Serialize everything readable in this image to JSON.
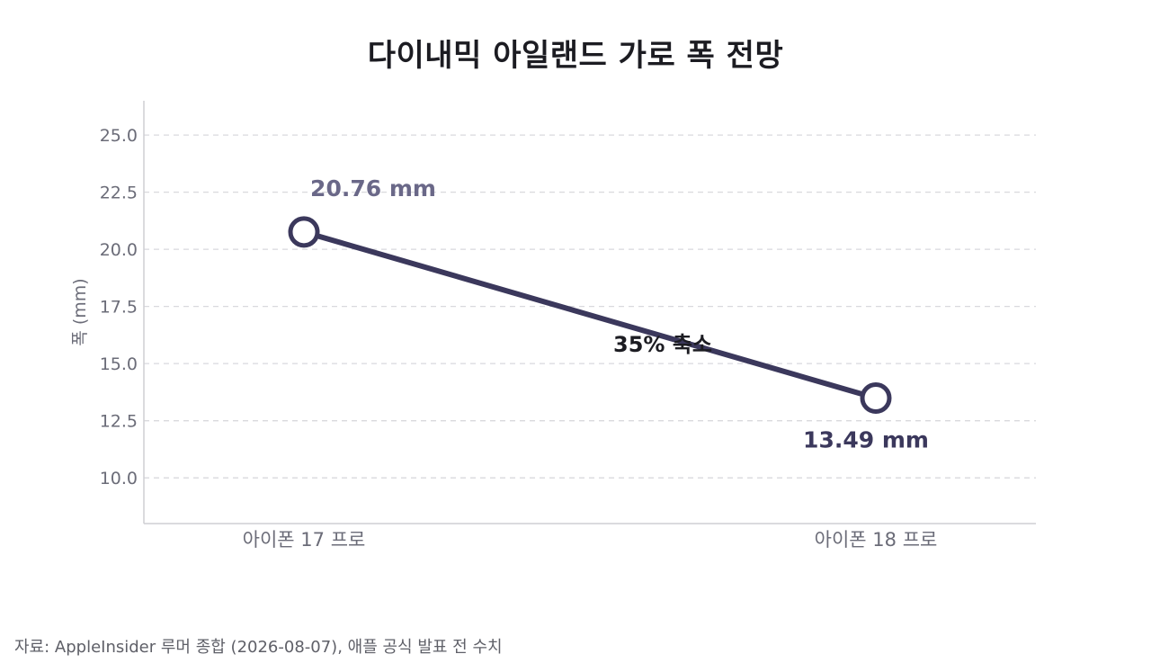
{
  "chart_data": {
    "type": "line",
    "title": "다이내믹 아일랜드 가로 폭 전망",
    "xlabel": "",
    "ylabel": "폭 (mm)",
    "categories": [
      "아이폰 17 프로",
      "아이폰 18 프로"
    ],
    "series": [
      {
        "values": [
          20.76,
          13.49
        ]
      }
    ],
    "data_labels": [
      "20.76 mm",
      "13.49 mm"
    ],
    "ylim": [
      8.0,
      26.5
    ],
    "yticks": [
      "10.0",
      "12.5",
      "15.0",
      "17.5",
      "20.0",
      "22.5",
      "25.0"
    ],
    "grid": true,
    "annotation": "35% 축소",
    "colors": {
      "line": "#3b385c",
      "label_first": "#6a6888",
      "label_second": "#3b385c",
      "grid": "#d9d9dd",
      "axis": "#cfcfd4"
    }
  },
  "source": "자료: AppleInsider 루머 종합 (2026-08-07), 애플 공식 발표 전 수치"
}
